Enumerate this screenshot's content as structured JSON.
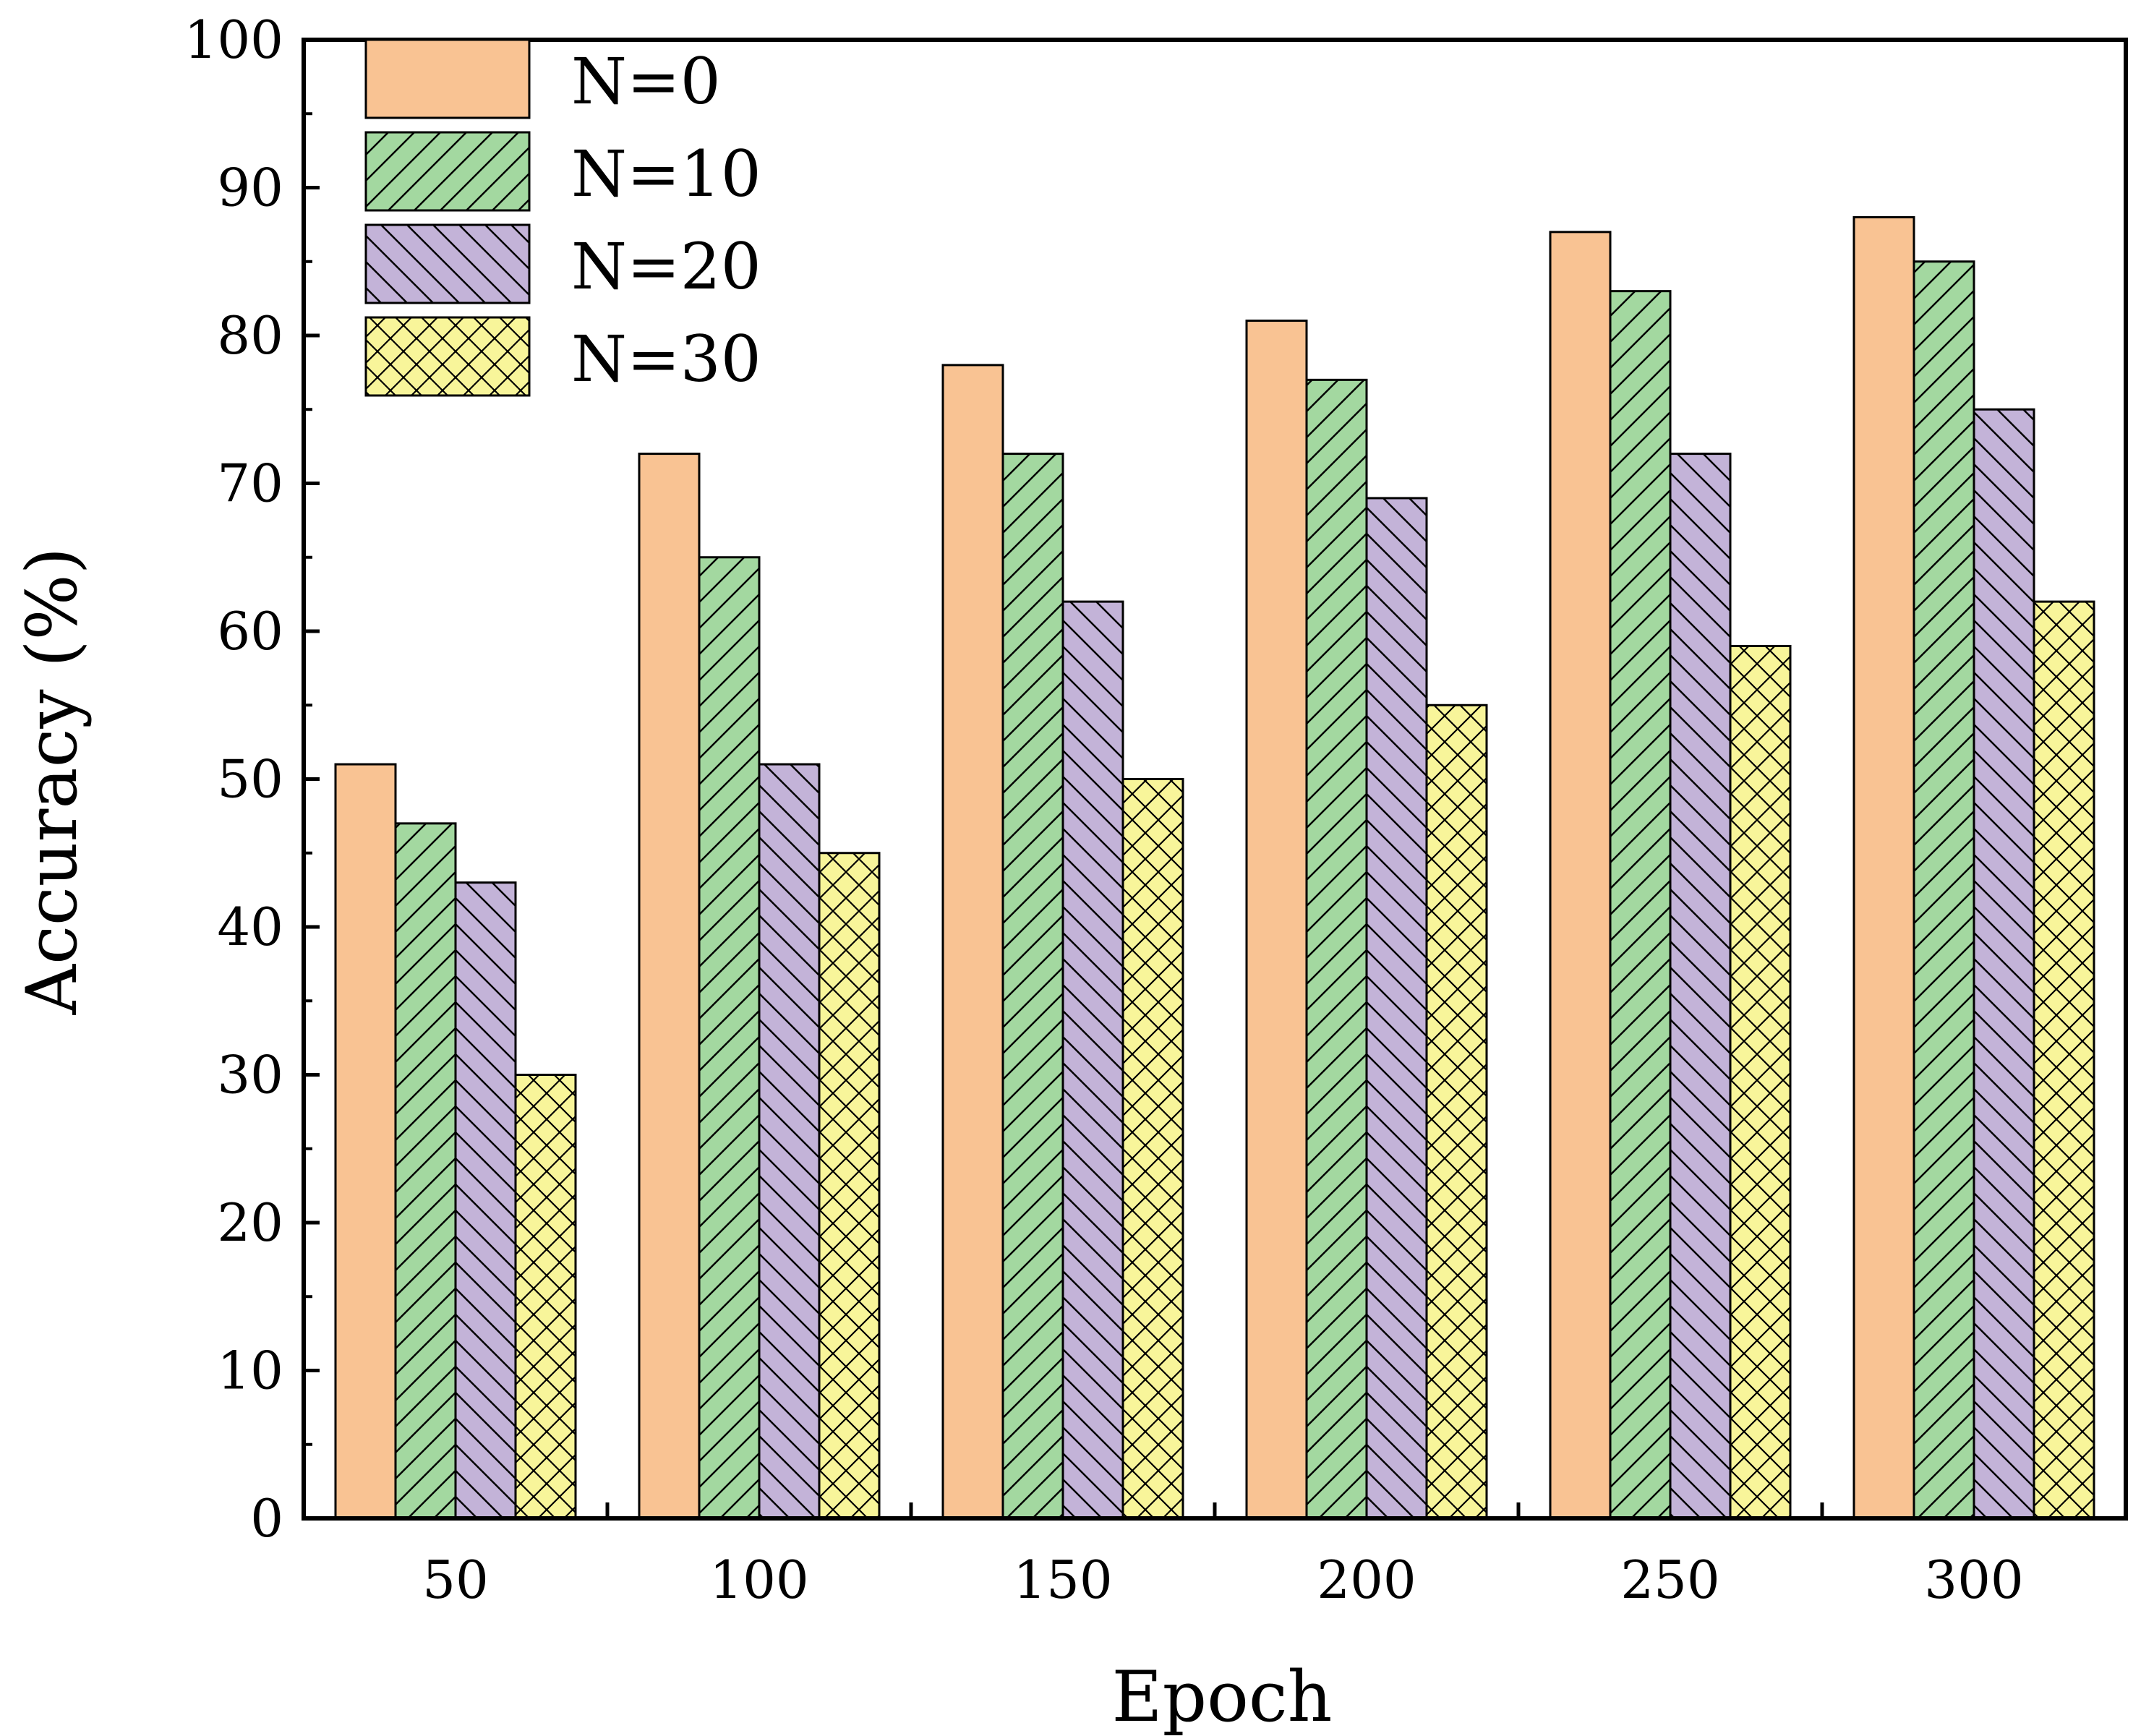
{
  "chart_data": {
    "type": "bar",
    "title": "",
    "xlabel": "Epoch",
    "ylabel": "Accuracy (%)",
    "ylim": [
      0,
      100
    ],
    "yticks": [
      "0",
      "10",
      "20",
      "30",
      "40",
      "50",
      "60",
      "70",
      "80",
      "90",
      "100"
    ],
    "categories": [
      "50",
      "100",
      "150",
      "200",
      "250",
      "300"
    ],
    "legend_position": "top-left",
    "grid": false,
    "series": [
      {
        "name": "N=0",
        "values": [
          51,
          72,
          78,
          81,
          87,
          88
        ],
        "color": "#F9C393",
        "pattern": "solid"
      },
      {
        "name": "N=10",
        "values": [
          47,
          65,
          72,
          77,
          83,
          85
        ],
        "color": "#A3D8A0",
        "pattern": "diagonal-up"
      },
      {
        "name": "N=20",
        "values": [
          43,
          51,
          62,
          69,
          72,
          75
        ],
        "color": "#C3B3D8",
        "pattern": "diagonal-down"
      },
      {
        "name": "N=30",
        "values": [
          30,
          45,
          50,
          55,
          59,
          62
        ],
        "color": "#F8F59A",
        "pattern": "crosshatch"
      }
    ]
  }
}
